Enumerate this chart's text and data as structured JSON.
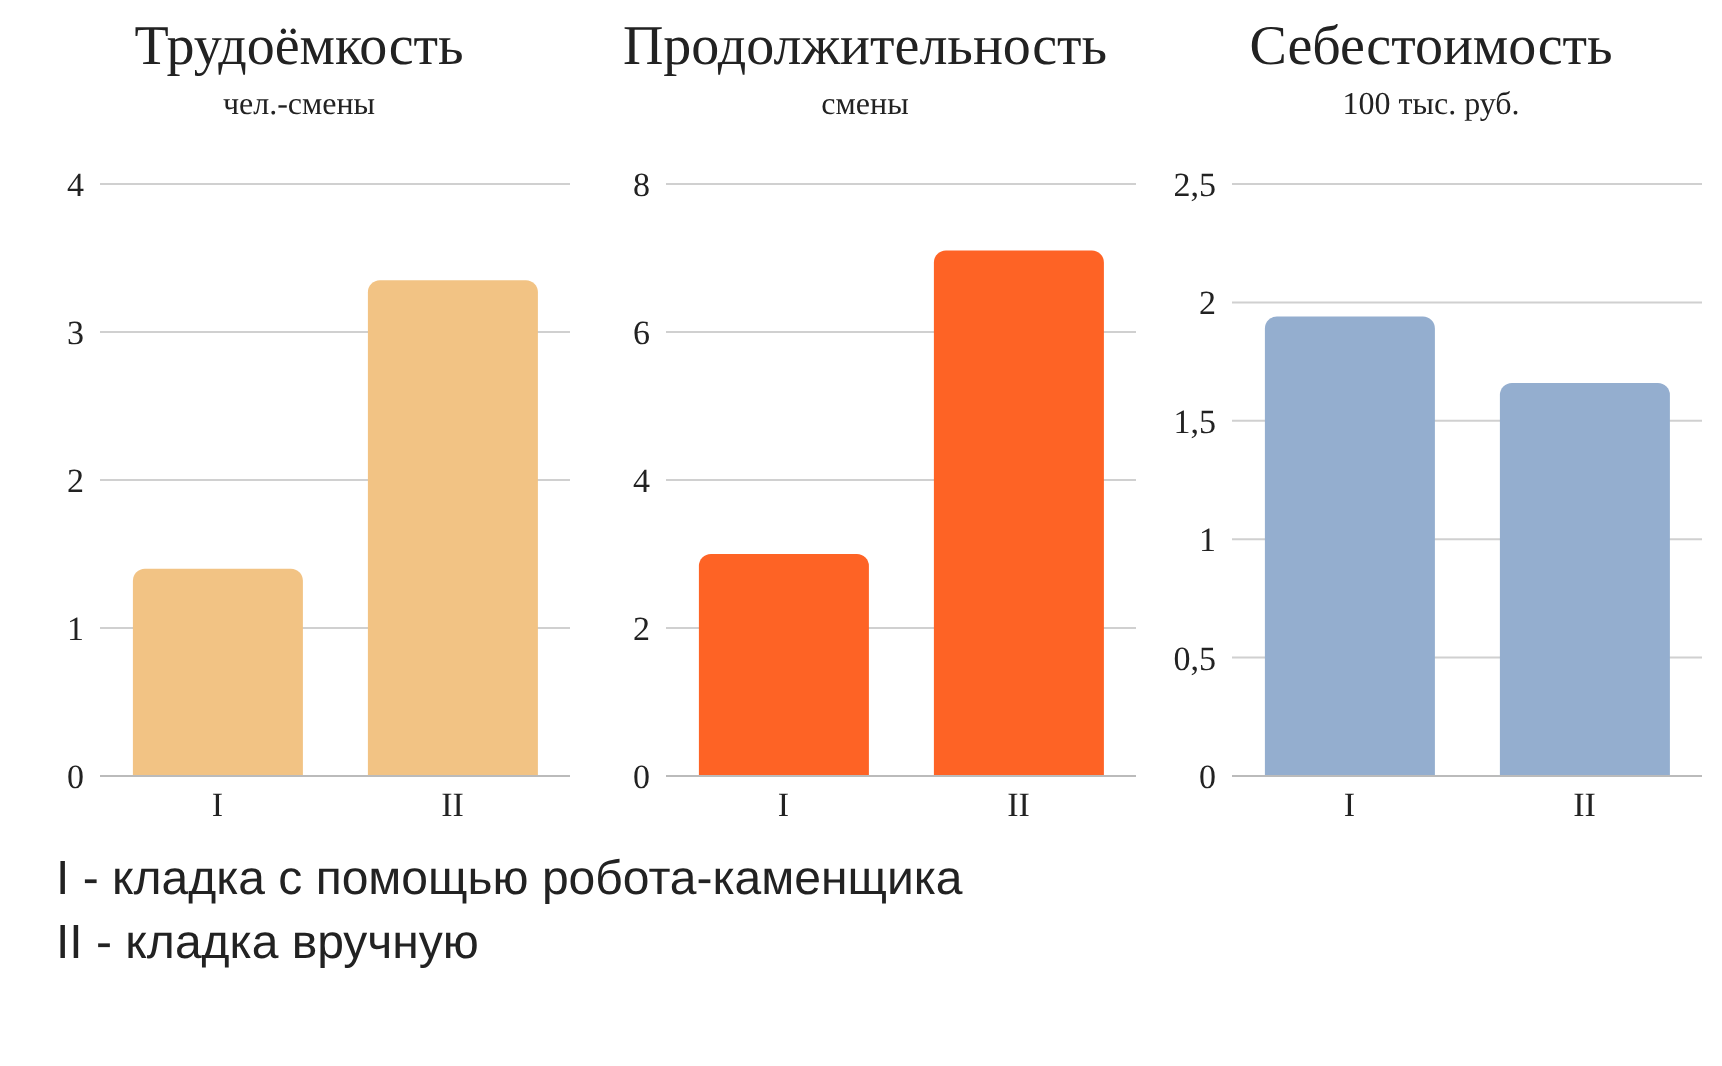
{
  "chart_data": [
    {
      "type": "bar",
      "title": "Трудоёмкость",
      "subtitle": "чел.-смены",
      "categories": [
        "I",
        "II"
      ],
      "values": [
        1.4,
        3.35
      ],
      "color": "#f2c384",
      "ylim": [
        0,
        4
      ],
      "yticks": [
        0,
        1,
        2,
        3,
        4
      ],
      "grid": "y",
      "annotations": [
        "I - кладка с помощью робота-каменщика",
        "II - кладка вручную"
      ]
    },
    {
      "type": "bar",
      "title": "Продолжительность",
      "subtitle": "смены",
      "categories": [
        "I",
        "II"
      ],
      "values": [
        3,
        7.1
      ],
      "color": "#fe6325",
      "ylim": [
        0,
        8
      ],
      "yticks": [
        0,
        2,
        4,
        6,
        8
      ],
      "grid": "y"
    },
    {
      "type": "bar",
      "title": "Себестоимость",
      "subtitle": "100 тыс. руб.",
      "categories": [
        "I",
        "II"
      ],
      "values": [
        1.94,
        1.66
      ],
      "color": "#94aecf",
      "ylim": [
        0,
        2.5
      ],
      "yticks": [
        0,
        {
          "value": 0.5,
          "label": "0,5"
        },
        1,
        {
          "value": 1.5,
          "label": "1,5"
        },
        2,
        {
          "value": 2.5,
          "label": "2,5"
        }
      ],
      "grid": "y"
    }
  ]
}
